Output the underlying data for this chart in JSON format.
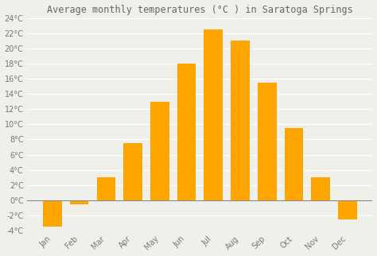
{
  "title": "Average monthly temperatures (°C ) in Saratoga Springs",
  "months": [
    "Jan",
    "Feb",
    "Mar",
    "Apr",
    "May",
    "Jun",
    "Jul",
    "Aug",
    "Sep",
    "Oct",
    "Nov",
    "Dec"
  ],
  "values": [
    -3.5,
    -0.5,
    3.0,
    7.5,
    13.0,
    18.0,
    22.5,
    21.0,
    15.5,
    9.5,
    3.0,
    -2.5
  ],
  "bar_color": "#FFA500",
  "ylim": [
    -4,
    24
  ],
  "yticks": [
    -4,
    -2,
    0,
    2,
    4,
    6,
    8,
    10,
    12,
    14,
    16,
    18,
    20,
    22,
    24
  ],
  "background_color": "#f0f0eb",
  "grid_color": "#ffffff",
  "title_fontsize": 8.5,
  "tick_fontsize": 7.0
}
